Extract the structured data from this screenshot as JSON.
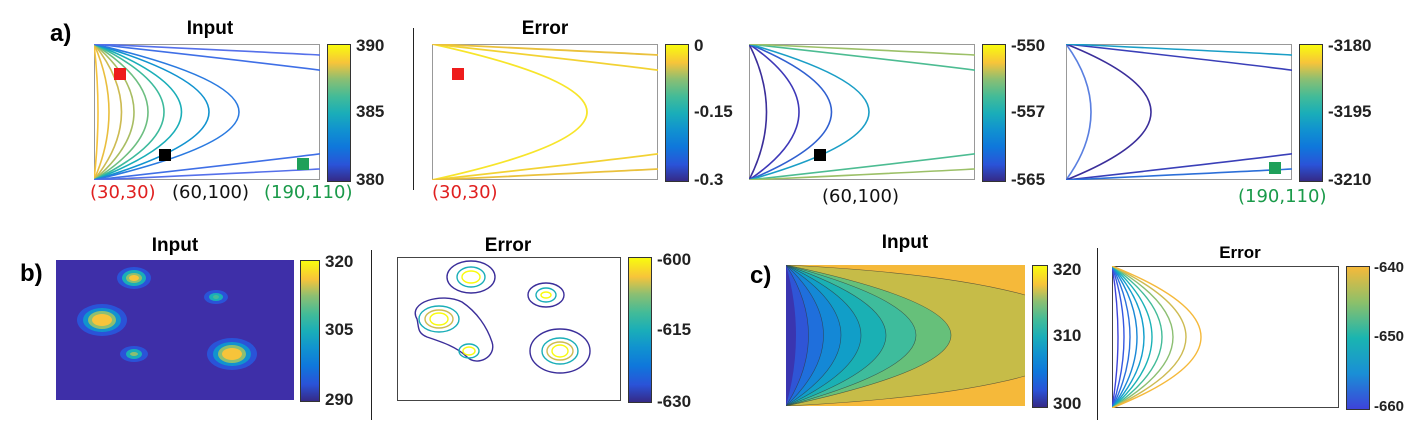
{
  "colors": {
    "marker_red": "#ee1c1c",
    "marker_black": "#000000",
    "marker_green": "#1fa05a",
    "coord_red": "#e02020",
    "coord_black": "#111111",
    "coord_green": "#1a9a4a",
    "parula_stops": [
      "#352a87",
      "#2a53d8",
      "#0f77db",
      "#1193cf",
      "#1aaeb8",
      "#42bb98",
      "#8cbf72",
      "#cdbb52",
      "#f7c43a",
      "#f9fb0e"
    ]
  },
  "panel_a": {
    "label": "a)",
    "input": {
      "title": "Input",
      "colorbar": {
        "top": "390",
        "mid": "385",
        "bottom": "380"
      }
    },
    "error": {
      "title": "Error",
      "colorbar": {
        "top": "0",
        "mid": "-0.15",
        "bottom": "-0.3"
      }
    },
    "error2": {
      "colorbar": {
        "top": "-550",
        "mid": "-557",
        "bottom": "-565"
      }
    },
    "error3": {
      "colorbar": {
        "top": "-3180",
        "mid": "-3195",
        "bottom": "-3210"
      }
    },
    "coords": {
      "red": "(30,30)",
      "black": "(60,100)",
      "green": "(190,110)"
    }
  },
  "panel_b": {
    "label": "b)",
    "input": {
      "title": "Input",
      "colorbar": {
        "top": "320",
        "mid": "305",
        "bottom": "290"
      }
    },
    "error": {
      "title": "Error",
      "colorbar": {
        "top": "-600",
        "mid": "-615",
        "bottom": "-630"
      }
    }
  },
  "panel_c": {
    "label": "c)",
    "input": {
      "title": "Input",
      "colorbar": {
        "top": "320",
        "mid": "310",
        "bottom": "300"
      }
    },
    "error": {
      "title": "Error",
      "colorbar": {
        "top": "-640",
        "mid": "-650",
        "bottom": "-660"
      }
    }
  }
}
